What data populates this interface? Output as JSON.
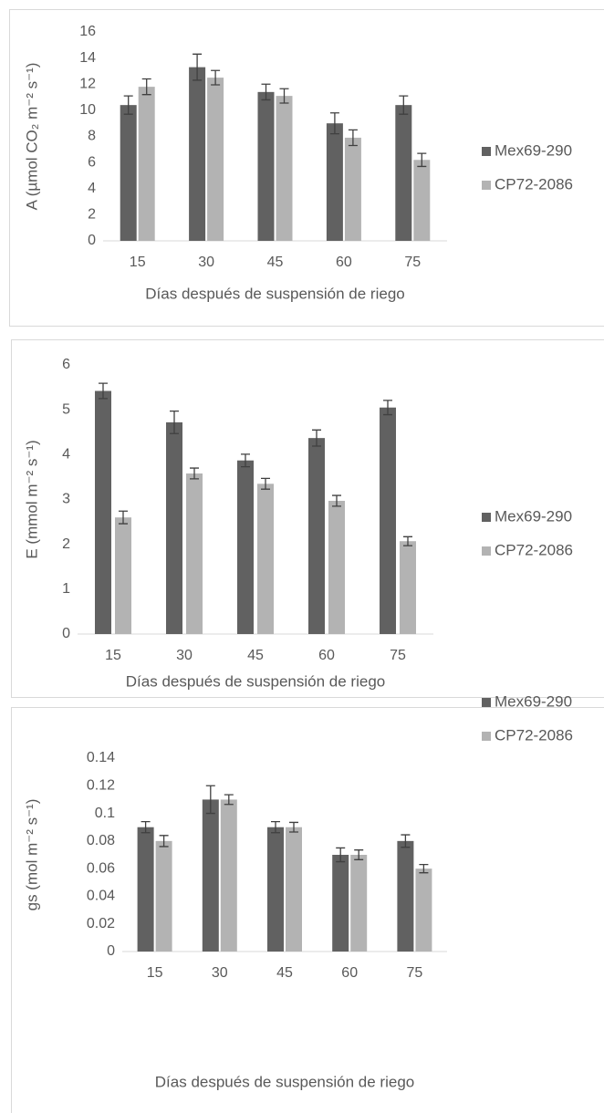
{
  "chart_data": [
    {
      "type": "bar",
      "y_label": "A (µmol CO₂ m⁻² s⁻¹)",
      "x_label": "Días después de suspensión de riego",
      "categories": [
        "15",
        "30",
        "45",
        "60",
        "75"
      ],
      "series": [
        {
          "name": "Mex69-290",
          "color": "#616161",
          "values": [
            10.4,
            13.3,
            11.4,
            9.0,
            10.4
          ],
          "errors": [
            0.7,
            1.0,
            0.6,
            0.8,
            0.7
          ]
        },
        {
          "name": "CP72-2086",
          "color": "#b3b3b3",
          "values": [
            11.8,
            12.5,
            11.1,
            7.9,
            6.2
          ],
          "errors": [
            0.6,
            0.55,
            0.55,
            0.6,
            0.5
          ]
        }
      ],
      "ylim": [
        0,
        16
      ],
      "yticks": [
        0,
        2,
        4,
        6,
        8,
        10,
        12,
        14,
        16
      ]
    },
    {
      "type": "bar",
      "y_label": "E (mmol m⁻² s⁻¹)",
      "x_label": "Días después de suspensión de riego",
      "categories": [
        "15",
        "30",
        "45",
        "60",
        "75"
      ],
      "series": [
        {
          "name": "Mex69-290",
          "color": "#616161",
          "values": [
            5.42,
            4.72,
            3.87,
            4.37,
            5.05
          ],
          "errors": [
            0.17,
            0.25,
            0.14,
            0.18,
            0.16
          ]
        },
        {
          "name": "CP72-2086",
          "color": "#b3b3b3",
          "values": [
            2.6,
            3.58,
            3.35,
            2.97,
            2.07
          ],
          "errors": [
            0.14,
            0.12,
            0.12,
            0.12,
            0.1
          ]
        }
      ],
      "ylim": [
        0,
        6
      ],
      "yticks": [
        0,
        1,
        2,
        3,
        4,
        5,
        6
      ]
    },
    {
      "type": "bar",
      "y_label": "gs (mol m⁻² s⁻¹)",
      "x_label": "Días después de suspensión de riego",
      "categories": [
        "15",
        "30",
        "45",
        "60",
        "75"
      ],
      "series": [
        {
          "name": "Mex69-290",
          "color": "#616161",
          "values": [
            0.09,
            0.11,
            0.09,
            0.07,
            0.08
          ],
          "errors": [
            0.004,
            0.01,
            0.004,
            0.005,
            0.0045
          ]
        },
        {
          "name": "CP72-2086",
          "color": "#b3b3b3",
          "values": [
            0.08,
            0.11,
            0.09,
            0.07,
            0.06
          ],
          "errors": [
            0.004,
            0.0035,
            0.0035,
            0.0035,
            0.003
          ]
        }
      ],
      "ylim": [
        0,
        0.14
      ],
      "yticks": [
        0,
        0.02,
        0.04,
        0.06,
        0.08,
        0.1,
        0.12,
        0.14
      ]
    }
  ]
}
